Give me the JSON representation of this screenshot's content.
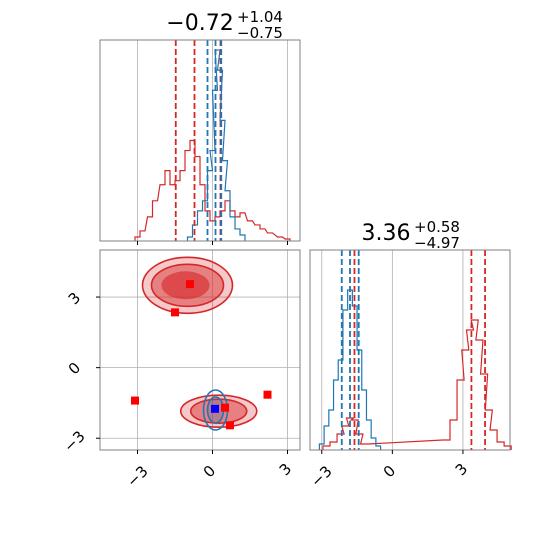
{
  "chart_data": {
    "type": "corner",
    "colors": {
      "red": "#d62728",
      "blue": "#1f77b4",
      "marker_red": "#ff0000",
      "marker_blue": "#0000ff"
    },
    "grid": true,
    "params": [
      {
        "title": {
          "median": "−0.72",
          "upper": "+1.04",
          "lower": "−0.75"
        },
        "xlim": [
          -4.5,
          3.5
        ],
        "ticks": [
          -3,
          0,
          3
        ],
        "tick_labels": [
          "−3",
          "0",
          "3"
        ],
        "red_quantiles": [
          -1.47,
          -0.72,
          0.32
        ],
        "blue_quantiles": [
          -0.2,
          0.12,
          0.35
        ]
      },
      {
        "title": {
          "median": "3.36",
          "upper": "+0.58",
          "lower": "−4.97"
        },
        "xlim": [
          -3.5,
          5.0
        ],
        "ticks": [
          -3,
          0,
          3
        ],
        "tick_labels": [
          "−3",
          "0",
          "3"
        ],
        "red_quantiles": [
          -1.61,
          3.36,
          3.94
        ],
        "blue_quantiles": [
          -2.15,
          -1.8,
          -1.43
        ],
        "ylim_2d": [
          -3.5,
          5.0
        ]
      }
    ],
    "hist_red_p1": [
      [
        -3.0,
        0.02
      ],
      [
        -2.8,
        0.05
      ],
      [
        -2.5,
        0.12
      ],
      [
        -2.3,
        0.2
      ],
      [
        -2.0,
        0.28
      ],
      [
        -1.8,
        0.35
      ],
      [
        -1.6,
        0.28
      ],
      [
        -1.4,
        0.3
      ],
      [
        -1.2,
        0.35
      ],
      [
        -1.0,
        0.45
      ],
      [
        -0.8,
        0.5
      ],
      [
        -0.6,
        0.42
      ],
      [
        -0.4,
        0.28
      ],
      [
        -0.2,
        0.15
      ],
      [
        0.0,
        0.1
      ],
      [
        0.2,
        0.12
      ],
      [
        0.4,
        0.15
      ],
      [
        0.6,
        0.2
      ],
      [
        0.8,
        0.15
      ],
      [
        1.0,
        0.12
      ],
      [
        1.2,
        0.14
      ],
      [
        1.5,
        0.1
      ],
      [
        1.8,
        0.08
      ],
      [
        2.0,
        0.06
      ],
      [
        2.3,
        0.04
      ],
      [
        2.7,
        0.02
      ],
      [
        3.0,
        0.01
      ]
    ],
    "hist_blue_p1": [
      [
        -0.9,
        0.02
      ],
      [
        -0.7,
        0.08
      ],
      [
        -0.5,
        0.15
      ],
      [
        -0.3,
        0.2
      ],
      [
        -0.1,
        0.35
      ],
      [
        0.0,
        0.45
      ],
      [
        0.1,
        0.75
      ],
      [
        0.2,
        0.95
      ],
      [
        0.3,
        0.85
      ],
      [
        0.4,
        0.6
      ],
      [
        0.5,
        0.4
      ],
      [
        0.6,
        0.25
      ],
      [
        0.8,
        0.12
      ],
      [
        1.0,
        0.06
      ],
      [
        1.2,
        0.03
      ]
    ],
    "hist_red_p2": [
      [
        -2.8,
        0.02
      ],
      [
        -2.5,
        0.04
      ],
      [
        -2.2,
        0.08
      ],
      [
        -2.0,
        0.12
      ],
      [
        -1.8,
        0.16
      ],
      [
        -1.6,
        0.15
      ],
      [
        -1.4,
        0.08
      ],
      [
        -1.2,
        0.03
      ],
      [
        2.3,
        0.05
      ],
      [
        2.6,
        0.15
      ],
      [
        2.9,
        0.35
      ],
      [
        3.1,
        0.5
      ],
      [
        3.3,
        0.6
      ],
      [
        3.5,
        0.65
      ],
      [
        3.7,
        0.55
      ],
      [
        3.9,
        0.38
      ],
      [
        4.1,
        0.2
      ],
      [
        4.3,
        0.1
      ],
      [
        4.6,
        0.04
      ],
      [
        4.9,
        0.02
      ]
    ],
    "hist_blue_p2": [
      [
        -3.0,
        0.03
      ],
      [
        -2.8,
        0.12
      ],
      [
        -2.6,
        0.2
      ],
      [
        -2.4,
        0.35
      ],
      [
        -2.2,
        0.45
      ],
      [
        -2.0,
        0.7
      ],
      [
        -1.8,
        0.8
      ],
      [
        -1.6,
        0.72
      ],
      [
        -1.4,
        0.5
      ],
      [
        -1.2,
        0.3
      ],
      [
        -1.0,
        0.15
      ],
      [
        -0.8,
        0.06
      ],
      [
        -0.6,
        0.02
      ]
    ],
    "red_markers": [
      [
        -0.9,
        3.55
      ],
      [
        -1.5,
        2.35
      ],
      [
        -3.1,
        -1.4
      ],
      [
        2.2,
        -1.15
      ],
      [
        0.5,
        -1.7
      ],
      [
        0.7,
        -2.45
      ]
    ],
    "blue_markers": [
      [
        0.1,
        -1.75
      ]
    ],
    "red_modes_2d": [
      [
        -1.0,
        3.5
      ],
      [
        0.25,
        -1.85
      ]
    ],
    "blue_mode_2d": [
      0.12,
      -1.8
    ]
  }
}
